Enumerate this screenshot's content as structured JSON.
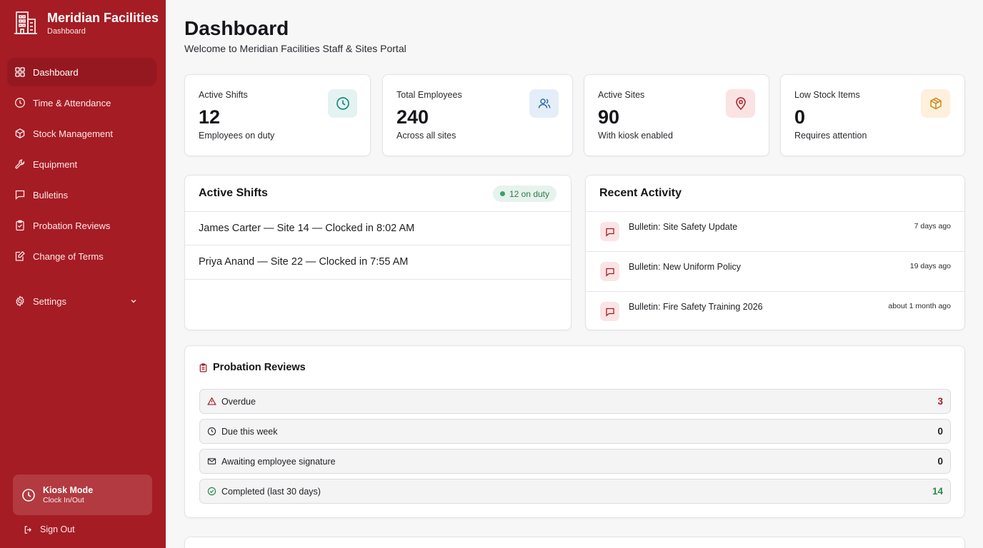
{
  "brand": {
    "title": "Meridian Facilities",
    "subtitle": "Dashboard"
  },
  "nav": {
    "items": [
      {
        "label": "Dashboard",
        "icon": "grid-icon"
      },
      {
        "label": "Time & Attendance",
        "icon": "clock-icon"
      },
      {
        "label": "Stock Management",
        "icon": "box-icon"
      },
      {
        "label": "Equipment",
        "icon": "wrench-icon"
      },
      {
        "label": "Bulletins",
        "icon": "message-icon"
      },
      {
        "label": "Probation Reviews",
        "icon": "clipboard-icon"
      },
      {
        "label": "Change of Terms",
        "icon": "edit-doc-icon"
      }
    ],
    "settings": "Settings",
    "active_index": 0
  },
  "kiosk": {
    "title": "Kiosk Mode",
    "subtitle": "Clock In/Out"
  },
  "signout": "Sign Out",
  "header": {
    "title": "Dashboard",
    "subtitle": "Welcome to Meridian Facilities Staff & Sites Portal"
  },
  "stats": [
    {
      "label": "Active Shifts",
      "value": "12",
      "note": "Employees on duty",
      "icon": "clock-icon",
      "bg": "#e4f3f2",
      "fg": "#1a8a82"
    },
    {
      "label": "Total Employees",
      "value": "240",
      "note": "Across all sites",
      "icon": "users-icon",
      "bg": "#e4eef8",
      "fg": "#2e6aa6"
    },
    {
      "label": "Active Sites",
      "value": "90",
      "note": "With kiosk enabled",
      "icon": "map-pin-icon",
      "bg": "#fbe3e4",
      "fg": "#b0262d"
    },
    {
      "label": "Low Stock Items",
      "value": "0",
      "note": "Requires attention",
      "icon": "package-icon",
      "bg": "#fdf1dd",
      "fg": "#cc8a1e"
    }
  ],
  "active_shifts": {
    "title": "Active Shifts",
    "badge": "12 on duty",
    "rows": [
      "James Carter — Site 14 — Clocked in 8:02 AM",
      "Priya Anand — Site 22 — Clocked in 7:55 AM"
    ]
  },
  "recent_activity": {
    "title": "Recent Activity",
    "items": [
      {
        "text": "Bulletin: Site Safety Update",
        "time": "7 days ago"
      },
      {
        "text": "Bulletin: New Uniform Policy",
        "time": "19 days ago"
      },
      {
        "text": "Bulletin: Fire Safety Training 2026",
        "time": "about 1 month ago"
      }
    ]
  },
  "probation": {
    "title": "Probation Reviews",
    "rows": [
      {
        "label": "Overdue",
        "count": "3",
        "icon": "alert-triangle-icon",
        "color": "#a51c24"
      },
      {
        "label": "Due this week",
        "count": "0",
        "icon": "clock-icon",
        "color": "#1f1f23"
      },
      {
        "label": "Awaiting employee signature",
        "count": "0",
        "icon": "mail-icon",
        "color": "#1f1f23"
      },
      {
        "label": "Completed (last 30 days)",
        "count": "14",
        "icon": "check-circle-icon",
        "color": "#2c8a4a"
      }
    ]
  }
}
